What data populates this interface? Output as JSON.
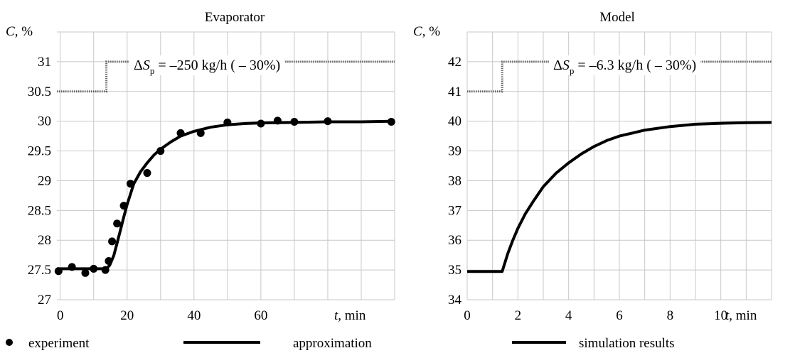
{
  "chart_data": [
    {
      "type": "line",
      "title": "Evaporator",
      "ylabel_var": "C",
      "ylabel_unit": ", %",
      "xlabel_var": "t",
      "xlabel_unit": ", min",
      "xlim": [
        -1,
        100
      ],
      "ylim": [
        27,
        31.5
      ],
      "xticks": [
        0,
        20,
        40,
        60
      ],
      "xgrid": [
        0,
        10,
        20,
        30,
        40,
        50,
        60,
        70,
        80,
        90,
        100
      ],
      "yticks": [
        27,
        27.5,
        28,
        28.5,
        29,
        29.5,
        30,
        30.5,
        31
      ],
      "ytick_labels": [
        "27",
        "27.5",
        "28",
        "28.5",
        "29",
        "29.5",
        "30",
        "30.5",
        "31"
      ],
      "grid": true,
      "annotation": {
        "prefix": "Δ",
        "var": "S",
        "sub": "p",
        "text": " = –250 kg/h ( – 30%)"
      },
      "step_input": {
        "name": "input",
        "x": [
          -1,
          13.8,
          13.8,
          100
        ],
        "y": [
          30.5,
          30.5,
          31.0,
          31.0
        ]
      },
      "series": [
        {
          "name": "approximation",
          "style": "line",
          "x": [
            -1,
            13.8,
            14.8,
            16,
            17,
            18,
            19,
            20,
            22,
            24,
            26,
            28,
            30,
            33,
            36,
            40,
            45,
            50,
            55,
            60,
            70,
            80,
            90,
            100
          ],
          "y": [
            27.52,
            27.52,
            27.58,
            27.74,
            27.95,
            28.17,
            28.39,
            28.6,
            28.95,
            29.15,
            29.3,
            29.43,
            29.53,
            29.65,
            29.75,
            29.83,
            29.9,
            29.94,
            29.96,
            29.97,
            29.98,
            29.99,
            29.99,
            30.0
          ]
        },
        {
          "name": "experiment",
          "style": "markers",
          "x": [
            -0.5,
            3.5,
            7.5,
            10,
            13.5,
            14.5,
            15.5,
            17,
            19,
            21,
            26,
            30,
            36,
            42,
            50,
            60,
            65,
            70,
            80,
            99
          ],
          "y": [
            27.48,
            27.55,
            27.45,
            27.52,
            27.5,
            27.65,
            27.98,
            28.28,
            28.58,
            28.95,
            29.13,
            29.5,
            29.8,
            29.8,
            29.98,
            29.96,
            30.01,
            29.99,
            30.0,
            29.99
          ]
        }
      ]
    },
    {
      "type": "line",
      "title": "Model",
      "ylabel_var": "C",
      "ylabel_unit": ", %",
      "xlabel_var": "t",
      "xlabel_unit": ", min",
      "xlim": [
        0,
        12
      ],
      "ylim": [
        34,
        43
      ],
      "xticks": [
        0,
        2,
        4,
        6,
        8,
        10
      ],
      "xgrid": [
        0,
        1,
        2,
        3,
        4,
        5,
        6,
        7,
        8,
        9,
        10,
        11,
        12
      ],
      "yticks": [
        34,
        35,
        36,
        37,
        38,
        39,
        40,
        41,
        42
      ],
      "ytick_labels": [
        "34",
        "35",
        "36",
        "37",
        "38",
        "39",
        "40",
        "41",
        "42"
      ],
      "grid": true,
      "annotation": {
        "prefix": "Δ",
        "var": "S",
        "sub": "p",
        "text": " = –6.3 kg/h ( – 30%)"
      },
      "step_input": {
        "name": "input",
        "x": [
          0,
          1.38,
          1.38,
          12
        ],
        "y": [
          41.0,
          41.0,
          42.0,
          42.0
        ]
      },
      "series": [
        {
          "name": "simulation results",
          "style": "line",
          "x": [
            0,
            1.38,
            1.6,
            1.8,
            2.0,
            2.3,
            2.6,
            3.0,
            3.5,
            4.0,
            4.5,
            5.0,
            5.5,
            6.0,
            7.0,
            8.0,
            9.0,
            10.0,
            11.0,
            12.0
          ],
          "y": [
            34.95,
            34.95,
            35.55,
            36.0,
            36.4,
            36.9,
            37.3,
            37.8,
            38.25,
            38.6,
            38.9,
            39.15,
            39.35,
            39.5,
            39.7,
            39.82,
            39.9,
            39.93,
            39.95,
            39.96
          ]
        }
      ]
    }
  ],
  "legend": {
    "experiment": "experiment",
    "approximation": "approximation",
    "simulation": "simulation results"
  }
}
